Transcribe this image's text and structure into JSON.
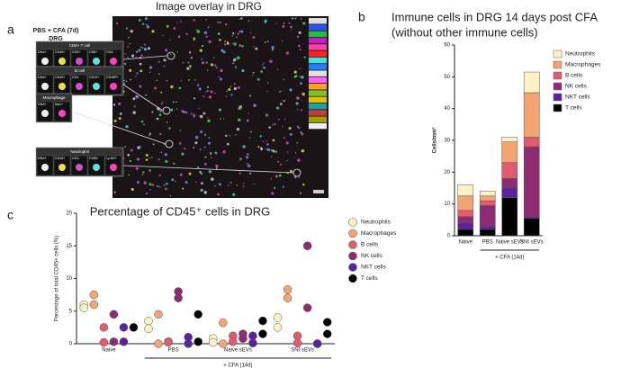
{
  "image_panel": {
    "label": "a",
    "title": "Image overlay in DRG",
    "sample": [
      "PBS + CFA (7d)",
      "DRG"
    ],
    "insets": [
      {
        "name": "CD8+ T cell",
        "channels": [
          "DNA+",
          "CD45+",
          "CD3+",
          "CD8+",
          "CD4-"
        ]
      },
      {
        "name": "B cell",
        "channels": [
          "DNA+",
          "CD45+",
          "CD3-",
          "CD19+",
          "CD45R+"
        ]
      },
      {
        "name": "Macrophage",
        "channels": [
          "DNA+",
          "Iba1+"
        ]
      },
      {
        "name": "Neutrophil",
        "channels": [
          "DNA+",
          "CD45+",
          "CD3-",
          "F4/80-",
          "Ly-6G+"
        ]
      }
    ]
  },
  "chart_data": [
    {
      "type": "stacked-bar",
      "label": "b",
      "title": [
        "Immune cells in DRG 14 days post CFA",
        "(without other immune cells)"
      ],
      "ylabel": "Cells/mm²",
      "categories": [
        "Naive",
        "PBS",
        "Naive sEVs",
        "SNI sEVs"
      ],
      "group_label": "+ CFA (14d)",
      "ylim": [
        0,
        60
      ],
      "yticks": [
        0,
        10,
        20,
        30,
        40,
        50,
        60
      ],
      "series": [
        {
          "name": "Neutrophils",
          "color": "#fbf3c4",
          "values": [
            3.5,
            1.5,
            1.5,
            6.5
          ]
        },
        {
          "name": "Macrophages",
          "color": "#f4a373",
          "values": [
            4.5,
            1.5,
            6.5,
            14
          ]
        },
        {
          "name": "B cells",
          "color": "#e25a6e",
          "values": [
            2,
            1.5,
            5,
            3
          ]
        },
        {
          "name": "NK cells",
          "color": "#8e2c73",
          "values": [
            2,
            6.5,
            3,
            22
          ]
        },
        {
          "name": "NKT cells",
          "color": "#5a22a0",
          "values": [
            2,
            1,
            3,
            0.5
          ]
        },
        {
          "name": "T cells",
          "color": "#000000",
          "values": [
            2,
            2,
            12,
            5.5
          ]
        }
      ]
    },
    {
      "type": "strip",
      "label": "c",
      "title": "Percentage of CD45⁺ cells in DRG",
      "ylabel": "Percentage of total CD45+ cells (%)",
      "categories": [
        "Naive",
        "PBS",
        "Naive sEVs",
        "SNI sEVs"
      ],
      "group_label": "+ CFA (14d)",
      "ylim": [
        0,
        20
      ],
      "yticks": [
        0,
        5,
        10,
        15,
        20
      ],
      "series": [
        {
          "name": "Neutrophils",
          "color": "#fbf3c4",
          "values": [
            [
              6,
              5.5
            ],
            [
              3.5,
              2.3
            ],
            [
              0.8,
              0.2
            ],
            [
              4,
              2.5
            ]
          ]
        },
        {
          "name": "Macrophages",
          "color": "#f4a373",
          "values": [
            [
              7.5,
              6
            ],
            [
              4.5,
              0
            ],
            [
              3.2,
              0
            ],
            [
              8.3,
              7
            ]
          ]
        },
        {
          "name": "B cells",
          "color": "#e25a6e",
          "values": [
            [
              2.5,
              0.2
            ],
            [
              0.3,
              0.2
            ],
            [
              1.2,
              0.3
            ],
            [
              1.2,
              0.1
            ]
          ]
        },
        {
          "name": "NK cells",
          "color": "#8e2c73",
          "values": [
            [
              4.5,
              0.3
            ],
            [
              8,
              7
            ],
            [
              1.5,
              0.8
            ],
            [
              15,
              5.5
            ]
          ]
        },
        {
          "name": "NKT cells",
          "color": "#5a22a0",
          "values": [
            [
              2.5,
              0.3
            ],
            [
              1,
              0
            ],
            [
              1.2,
              0.1
            ],
            [
              0,
              0
            ]
          ]
        },
        {
          "name": "T cells",
          "color": "#000000",
          "values": [
            [
              2.5,
              2.5
            ],
            [
              4.5,
              0.3
            ],
            [
              3.5,
              1.5
            ],
            [
              3.3,
              1.5
            ]
          ]
        }
      ]
    }
  ]
}
